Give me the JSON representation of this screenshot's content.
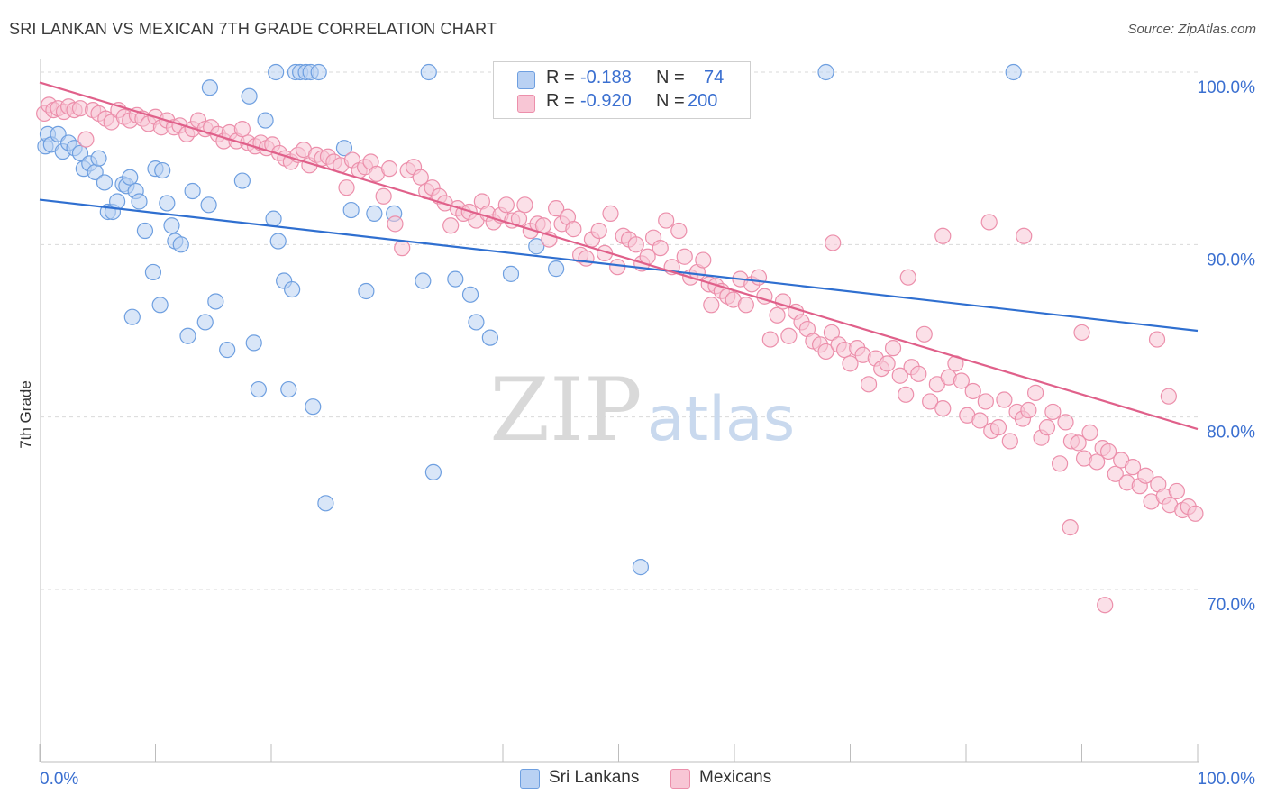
{
  "title": "SRI LANKAN VS MEXICAN 7TH GRADE CORRELATION CHART",
  "source": "Source: ZipAtlas.com",
  "watermark": {
    "zip": "ZIP",
    "atlas": "atlas"
  },
  "legend": {
    "rows": [
      {
        "r_label": "R =",
        "r_value": "-0.188",
        "n_label": "N =",
        "n_value": "74"
      },
      {
        "r_label": "R =",
        "r_value": "-0.920",
        "n_label": "N =",
        "n_value": "200"
      }
    ]
  },
  "colors": {
    "sri_fill": "#b9d1f3",
    "sri_stroke": "#6e9fe0",
    "sri_line": "#2f6fd0",
    "mex_fill": "#f8c6d5",
    "mex_stroke": "#ec8fab",
    "mex_line": "#e0608a",
    "grid": "#d9d9d9",
    "tick_label": "#3a6fd0"
  },
  "chart_data": {
    "type": "scatter",
    "title": "SRI LANKAN VS MEXICAN 7TH GRADE CORRELATION CHART",
    "xlabel": "",
    "ylabel": "7th Grade",
    "xlim": [
      0,
      100
    ],
    "ylim": [
      60.5,
      101.5
    ],
    "x_tick_labels": [
      "0.0%",
      "100.0%"
    ],
    "y_ticks": [
      100,
      90,
      80,
      70
    ],
    "y_tick_labels": [
      "100.0%",
      "90.0%",
      "80.0%",
      "70.0%"
    ],
    "legend_position": "bottom-center",
    "series": [
      {
        "name": "Sri Lankans",
        "r": -0.188,
        "n": 74,
        "trend": {
          "x": [
            0,
            100
          ],
          "y": [
            92.6,
            85.0
          ]
        },
        "points": [
          [
            0.5,
            95.7
          ],
          [
            0.7,
            96.4
          ],
          [
            1.0,
            95.8
          ],
          [
            1.6,
            96.4
          ],
          [
            2.0,
            95.4
          ],
          [
            2.5,
            95.9
          ],
          [
            3.0,
            95.6
          ],
          [
            3.5,
            95.3
          ],
          [
            3.8,
            94.4
          ],
          [
            4.3,
            94.7
          ],
          [
            4.8,
            94.2
          ],
          [
            5.1,
            95.0
          ],
          [
            5.6,
            93.6
          ],
          [
            5.9,
            91.9
          ],
          [
            6.3,
            91.9
          ],
          [
            6.7,
            92.5
          ],
          [
            7.2,
            93.5
          ],
          [
            7.5,
            93.4
          ],
          [
            7.8,
            93.9
          ],
          [
            8.3,
            93.1
          ],
          [
            8.6,
            92.5
          ],
          [
            9.1,
            90.8
          ],
          [
            10.0,
            94.4
          ],
          [
            10.6,
            94.3
          ],
          [
            11.0,
            92.4
          ],
          [
            11.4,
            91.1
          ],
          [
            11.7,
            90.2
          ],
          [
            9.8,
            88.4
          ],
          [
            10.4,
            86.5
          ],
          [
            8.0,
            85.8
          ],
          [
            13.2,
            93.1
          ],
          [
            14.6,
            92.3
          ],
          [
            17.5,
            93.7
          ],
          [
            15.2,
            86.7
          ],
          [
            14.3,
            85.5
          ],
          [
            12.8,
            84.7
          ],
          [
            16.2,
            83.9
          ],
          [
            18.5,
            84.3
          ],
          [
            20.2,
            91.5
          ],
          [
            19.5,
            97.2
          ],
          [
            18.1,
            98.6
          ],
          [
            14.7,
            99.1
          ],
          [
            20.6,
            90.2
          ],
          [
            21.1,
            87.9
          ],
          [
            21.8,
            87.4
          ],
          [
            18.9,
            81.6
          ],
          [
            21.5,
            81.6
          ],
          [
            23.6,
            80.6
          ],
          [
            24.7,
            75.0
          ],
          [
            26.3,
            95.6
          ],
          [
            26.9,
            92.0
          ],
          [
            28.2,
            87.3
          ],
          [
            28.9,
            91.8
          ],
          [
            30.6,
            91.8
          ],
          [
            33.1,
            87.9
          ],
          [
            33.6,
            100.0
          ],
          [
            34.0,
            76.8
          ],
          [
            35.9,
            88.0
          ],
          [
            37.2,
            87.1
          ],
          [
            37.7,
            85.5
          ],
          [
            38.9,
            84.6
          ],
          [
            40.7,
            88.3
          ],
          [
            42.9,
            89.9
          ],
          [
            44.6,
            88.6
          ],
          [
            51.9,
            71.3
          ],
          [
            67.9,
            100.0
          ],
          [
            84.1,
            100.0
          ],
          [
            20.4,
            100.0
          ],
          [
            22.1,
            100.0
          ],
          [
            22.5,
            100.0
          ],
          [
            23.0,
            100.0
          ],
          [
            23.4,
            100.0
          ],
          [
            24.1,
            100.0
          ],
          [
            12.2,
            90.0
          ]
        ]
      },
      {
        "name": "Mexicans",
        "r": -0.92,
        "n": 200,
        "trend": {
          "x": [
            0,
            100
          ],
          "y": [
            99.4,
            79.3
          ]
        },
        "points": [
          [
            0.4,
            97.6
          ],
          [
            0.8,
            98.1
          ],
          [
            1.2,
            97.8
          ],
          [
            1.6,
            97.9
          ],
          [
            2.1,
            97.7
          ],
          [
            2.5,
            98.0
          ],
          [
            3.0,
            97.8
          ],
          [
            3.5,
            97.9
          ],
          [
            4.0,
            96.1
          ],
          [
            4.6,
            97.8
          ],
          [
            5.1,
            97.6
          ],
          [
            5.7,
            97.3
          ],
          [
            6.2,
            97.1
          ],
          [
            6.8,
            97.8
          ],
          [
            7.3,
            97.4
          ],
          [
            7.8,
            97.2
          ],
          [
            8.4,
            97.5
          ],
          [
            8.9,
            97.3
          ],
          [
            9.4,
            97.0
          ],
          [
            10.0,
            97.4
          ],
          [
            10.5,
            96.8
          ],
          [
            11.0,
            97.2
          ],
          [
            11.6,
            96.8
          ],
          [
            12.1,
            96.9
          ],
          [
            12.7,
            96.4
          ],
          [
            13.2,
            96.7
          ],
          [
            13.7,
            97.2
          ],
          [
            14.3,
            96.7
          ],
          [
            14.8,
            96.8
          ],
          [
            15.4,
            96.4
          ],
          [
            15.9,
            96.0
          ],
          [
            16.4,
            96.5
          ],
          [
            17.0,
            96.0
          ],
          [
            17.5,
            96.7
          ],
          [
            18.0,
            95.9
          ],
          [
            18.6,
            95.7
          ],
          [
            19.1,
            95.9
          ],
          [
            19.6,
            95.6
          ],
          [
            20.1,
            95.8
          ],
          [
            20.7,
            95.3
          ],
          [
            21.2,
            95.0
          ],
          [
            21.7,
            94.8
          ],
          [
            22.3,
            95.2
          ],
          [
            22.8,
            95.5
          ],
          [
            23.3,
            94.6
          ],
          [
            23.9,
            95.2
          ],
          [
            24.4,
            95.0
          ],
          [
            24.9,
            95.1
          ],
          [
            25.4,
            94.8
          ],
          [
            26.0,
            94.6
          ],
          [
            26.5,
            93.3
          ],
          [
            27.0,
            94.9
          ],
          [
            27.6,
            94.3
          ],
          [
            28.1,
            94.5
          ],
          [
            28.6,
            94.8
          ],
          [
            29.1,
            94.1
          ],
          [
            29.7,
            92.8
          ],
          [
            30.2,
            94.4
          ],
          [
            30.7,
            91.2
          ],
          [
            31.3,
            89.8
          ],
          [
            31.8,
            94.3
          ],
          [
            32.3,
            94.5
          ],
          [
            32.9,
            93.9
          ],
          [
            33.4,
            93.1
          ],
          [
            33.9,
            93.3
          ],
          [
            34.5,
            92.8
          ],
          [
            35.0,
            92.4
          ],
          [
            35.5,
            91.1
          ],
          [
            36.1,
            92.1
          ],
          [
            36.6,
            91.8
          ],
          [
            37.1,
            91.9
          ],
          [
            37.7,
            91.4
          ],
          [
            38.2,
            92.5
          ],
          [
            38.7,
            91.8
          ],
          [
            39.2,
            91.3
          ],
          [
            39.8,
            91.7
          ],
          [
            40.3,
            92.3
          ],
          [
            40.8,
            91.4
          ],
          [
            41.4,
            91.5
          ],
          [
            41.9,
            92.3
          ],
          [
            42.4,
            90.8
          ],
          [
            43.0,
            91.2
          ],
          [
            43.5,
            91.1
          ],
          [
            44.0,
            90.3
          ],
          [
            44.6,
            92.1
          ],
          [
            45.1,
            91.2
          ],
          [
            45.6,
            91.6
          ],
          [
            46.1,
            90.9
          ],
          [
            46.7,
            89.4
          ],
          [
            47.2,
            89.2
          ],
          [
            47.7,
            90.3
          ],
          [
            48.3,
            90.8
          ],
          [
            48.8,
            89.5
          ],
          [
            49.3,
            91.8
          ],
          [
            49.9,
            88.7
          ],
          [
            50.4,
            90.5
          ],
          [
            50.9,
            90.3
          ],
          [
            51.5,
            90.0
          ],
          [
            52.0,
            88.9
          ],
          [
            52.5,
            89.3
          ],
          [
            53.0,
            90.4
          ],
          [
            53.6,
            89.8
          ],
          [
            54.1,
            91.4
          ],
          [
            54.6,
            88.7
          ],
          [
            55.2,
            90.8
          ],
          [
            55.7,
            89.3
          ],
          [
            56.2,
            88.1
          ],
          [
            56.8,
            88.4
          ],
          [
            57.3,
            89.1
          ],
          [
            57.8,
            87.7
          ],
          [
            58.4,
            87.6
          ],
          [
            58.9,
            87.3
          ],
          [
            59.4,
            87.0
          ],
          [
            59.9,
            86.8
          ],
          [
            60.5,
            88.0
          ],
          [
            61.0,
            86.5
          ],
          [
            61.5,
            87.7
          ],
          [
            62.1,
            88.1
          ],
          [
            62.6,
            87.0
          ],
          [
            63.1,
            84.5
          ],
          [
            63.7,
            85.9
          ],
          [
            64.2,
            86.7
          ],
          [
            64.7,
            84.7
          ],
          [
            65.3,
            86.1
          ],
          [
            65.8,
            85.5
          ],
          [
            66.3,
            85.1
          ],
          [
            66.8,
            84.4
          ],
          [
            67.4,
            84.2
          ],
          [
            67.9,
            83.8
          ],
          [
            68.4,
            84.9
          ],
          [
            69.0,
            84.2
          ],
          [
            69.5,
            83.9
          ],
          [
            70.0,
            83.1
          ],
          [
            70.6,
            84.0
          ],
          [
            71.1,
            83.6
          ],
          [
            71.6,
            81.9
          ],
          [
            72.2,
            83.4
          ],
          [
            72.7,
            82.8
          ],
          [
            73.2,
            83.1
          ],
          [
            73.7,
            84.0
          ],
          [
            74.3,
            82.4
          ],
          [
            74.8,
            81.3
          ],
          [
            75.3,
            82.9
          ],
          [
            75.9,
            82.5
          ],
          [
            76.4,
            84.8
          ],
          [
            76.9,
            80.9
          ],
          [
            77.5,
            81.9
          ],
          [
            78.0,
            80.5
          ],
          [
            78.5,
            82.3
          ],
          [
            79.1,
            83.1
          ],
          [
            79.6,
            82.1
          ],
          [
            80.1,
            80.1
          ],
          [
            80.6,
            81.5
          ],
          [
            81.2,
            79.8
          ],
          [
            81.7,
            80.9
          ],
          [
            82.2,
            79.2
          ],
          [
            82.8,
            79.4
          ],
          [
            83.3,
            81.0
          ],
          [
            83.8,
            78.6
          ],
          [
            84.4,
            80.3
          ],
          [
            84.9,
            79.9
          ],
          [
            85.4,
            80.4
          ],
          [
            86.0,
            81.4
          ],
          [
            86.5,
            78.8
          ],
          [
            87.0,
            79.4
          ],
          [
            87.5,
            80.3
          ],
          [
            88.1,
            77.3
          ],
          [
            88.6,
            79.7
          ],
          [
            89.1,
            78.6
          ],
          [
            89.7,
            78.5
          ],
          [
            90.2,
            77.6
          ],
          [
            90.7,
            79.1
          ],
          [
            91.3,
            77.4
          ],
          [
            91.8,
            78.2
          ],
          [
            92.3,
            78.0
          ],
          [
            92.9,
            76.7
          ],
          [
            93.4,
            77.5
          ],
          [
            93.9,
            76.2
          ],
          [
            94.4,
            77.1
          ],
          [
            95.0,
            76.0
          ],
          [
            95.5,
            76.6
          ],
          [
            96.0,
            75.1
          ],
          [
            96.6,
            76.1
          ],
          [
            97.1,
            75.4
          ],
          [
            97.6,
            74.9
          ],
          [
            98.2,
            75.7
          ],
          [
            98.7,
            74.6
          ],
          [
            99.2,
            74.8
          ],
          [
            99.8,
            74.4
          ],
          [
            92.0,
            69.1
          ],
          [
            89.0,
            73.6
          ],
          [
            58.0,
            86.5
          ],
          [
            68.5,
            90.1
          ],
          [
            78.0,
            90.5
          ],
          [
            82.0,
            91.3
          ],
          [
            85.0,
            90.5
          ],
          [
            90.0,
            84.9
          ],
          [
            96.5,
            84.5
          ],
          [
            97.5,
            81.2
          ],
          [
            75.0,
            88.1
          ]
        ]
      }
    ]
  },
  "bottom_legend": [
    {
      "label": "Sri Lankans"
    },
    {
      "label": "Mexicans"
    }
  ]
}
